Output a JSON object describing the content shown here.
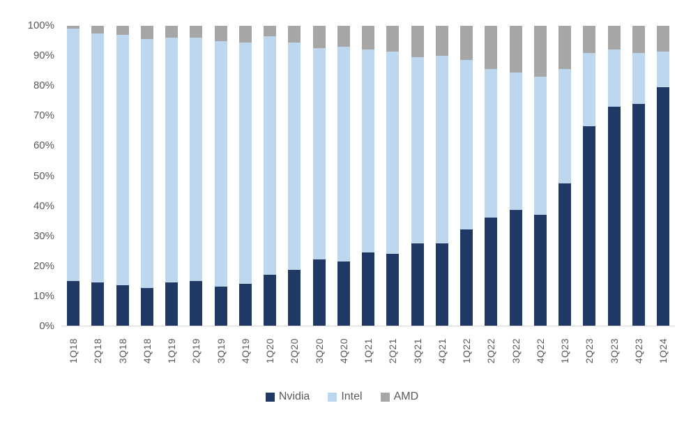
{
  "chart_data": {
    "type": "bar",
    "stacked": true,
    "title": "",
    "xlabel": "",
    "ylabel": "",
    "ylim": [
      0,
      100
    ],
    "grid": false,
    "legend_position": "bottom",
    "yticks": [
      "0%",
      "10%",
      "20%",
      "30%",
      "40%",
      "50%",
      "60%",
      "70%",
      "80%",
      "90%",
      "100%"
    ],
    "categories": [
      "1Q18",
      "2Q18",
      "3Q18",
      "4Q18",
      "1Q19",
      "2Q19",
      "3Q19",
      "4Q19",
      "1Q20",
      "2Q20",
      "3Q20",
      "4Q20",
      "1Q21",
      "2Q21",
      "3Q21",
      "4Q21",
      "1Q22",
      "2Q22",
      "3Q22",
      "4Q22",
      "1Q23",
      "2Q23",
      "3Q23",
      "4Q23",
      "1Q24"
    ],
    "series": [
      {
        "name": "Nvidia",
        "color": "#1f3864",
        "values": [
          15,
          14.5,
          13.5,
          12.5,
          14.5,
          15,
          13,
          14,
          17,
          18.5,
          22,
          21.5,
          24.5,
          24,
          27.5,
          27.5,
          32,
          36,
          38.5,
          37,
          47.5,
          66.5,
          73,
          74,
          79.5
        ]
      },
      {
        "name": "Intel",
        "color": "#bdd7ee",
        "values": [
          84,
          83,
          83.5,
          83,
          81.5,
          81,
          82,
          80.5,
          79.5,
          76,
          70.5,
          71.5,
          67.5,
          67.5,
          62,
          62.5,
          56.5,
          49.5,
          46,
          46,
          38,
          24.5,
          19,
          17,
          12
        ]
      },
      {
        "name": "AMD",
        "color": "#a6a6a6",
        "values": [
          1,
          2.5,
          3,
          4.5,
          4,
          4,
          5,
          5.5,
          3.5,
          5.5,
          7.5,
          7,
          8,
          8.5,
          10.5,
          10,
          11.5,
          14.5,
          15.5,
          17,
          14.5,
          9,
          8,
          9,
          8.5
        ]
      }
    ],
    "colors": {
      "tick_label": "#595959",
      "axis_line": "#d9d9d9",
      "background": "#ffffff"
    }
  }
}
